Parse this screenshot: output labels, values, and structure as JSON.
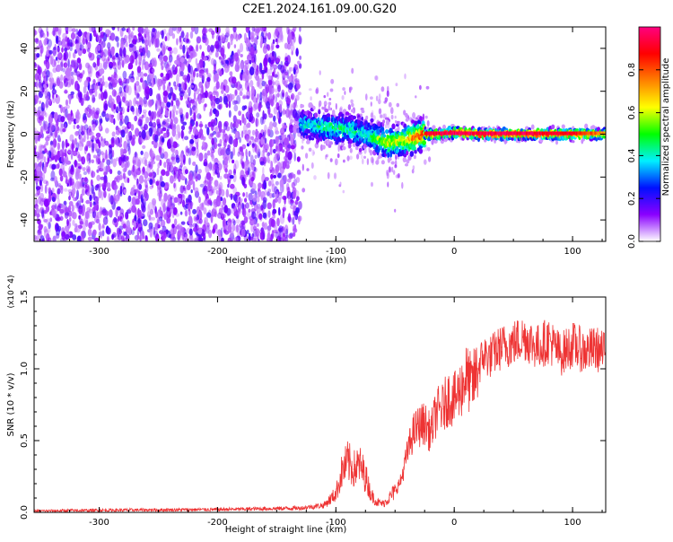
{
  "figure": {
    "title": "C2E1.2024.161.09.00.G20"
  },
  "chart_data": [
    {
      "type": "heatmap",
      "title": "C2E1.2024.161.09.00.G20",
      "xlabel": "Height of straight line (km)",
      "ylabel": "Frequency (Hz)",
      "xlim": [
        -355,
        128
      ],
      "ylim": [
        -50,
        50
      ],
      "x_ticks": [
        -300,
        -200,
        -100,
        0,
        100
      ],
      "y_ticks": [
        -40,
        -20,
        0,
        20,
        40
      ],
      "colorbar": {
        "label": "Normalized spectral amplitude",
        "range": [
          0.0,
          1.0
        ],
        "ticks": [
          0.0,
          0.2,
          0.4,
          0.6,
          0.8
        ],
        "tick_labels": [
          "0.0",
          "0.2",
          "0.4",
          "0.6",
          "0.8"
        ],
        "colormap": [
          "#ffffff",
          "#8a00ff",
          "#0010ff",
          "#00f0ff",
          "#00ff00",
          "#ffff00",
          "#ff8000",
          "#ff0000",
          "#ff0080"
        ]
      },
      "noise_region_x": [
        -355,
        -130
      ],
      "signal_track": {
        "x": [
          -130,
          -110,
          -90,
          -75,
          -65,
          -55,
          -45,
          -35,
          -25,
          -10,
          0,
          20,
          50,
          80,
          100,
          128
        ],
        "frequency": [
          5,
          3,
          2,
          0,
          -2,
          -4,
          -3,
          -2,
          0,
          0,
          1,
          0,
          0,
          0,
          0,
          0
        ],
        "amplitude": [
          0.35,
          0.45,
          0.45,
          0.4,
          0.55,
          0.6,
          0.65,
          0.75,
          0.9,
          0.95,
          0.95,
          0.95,
          0.95,
          0.92,
          0.9,
          0.7
        ]
      }
    },
    {
      "type": "line",
      "xlabel": "Height of straight line (km)",
      "ylabel": "SNR (10 * v/v)",
      "y_multiplier": "(x10^4)",
      "xlim": [
        -355,
        128
      ],
      "ylim": [
        0,
        1.5
      ],
      "x_ticks": [
        -300,
        -200,
        -100,
        0,
        100
      ],
      "y_ticks": [
        0.0,
        0.5,
        1.0,
        1.5
      ],
      "y_tick_labels": [
        "0.0",
        "0.5",
        "1.0",
        "1.5"
      ],
      "series": [
        {
          "color": "#ee3333",
          "x": [
            -355,
            -300,
            -200,
            -130,
            -110,
            -100,
            -95,
            -90,
            -85,
            -80,
            -75,
            -70,
            -65,
            -60,
            -55,
            -50,
            -45,
            -40,
            -35,
            -30,
            -25,
            -20,
            -15,
            -10,
            -5,
            0,
            5,
            10,
            15,
            20,
            25,
            30,
            35,
            40,
            50,
            60,
            70,
            80,
            90,
            100,
            110,
            120,
            128
          ],
          "y": [
            0.01,
            0.015,
            0.02,
            0.03,
            0.05,
            0.13,
            0.28,
            0.35,
            0.3,
            0.33,
            0.25,
            0.12,
            0.07,
            0.06,
            0.1,
            0.15,
            0.22,
            0.4,
            0.55,
            0.6,
            0.62,
            0.55,
            0.7,
            0.72,
            0.8,
            0.78,
            0.85,
            0.95,
            0.88,
            1.0,
            1.1,
            1.08,
            1.12,
            1.15,
            1.18,
            1.22,
            1.15,
            1.2,
            1.1,
            1.17,
            1.12,
            1.14,
            1.1
          ]
        }
      ]
    }
  ]
}
